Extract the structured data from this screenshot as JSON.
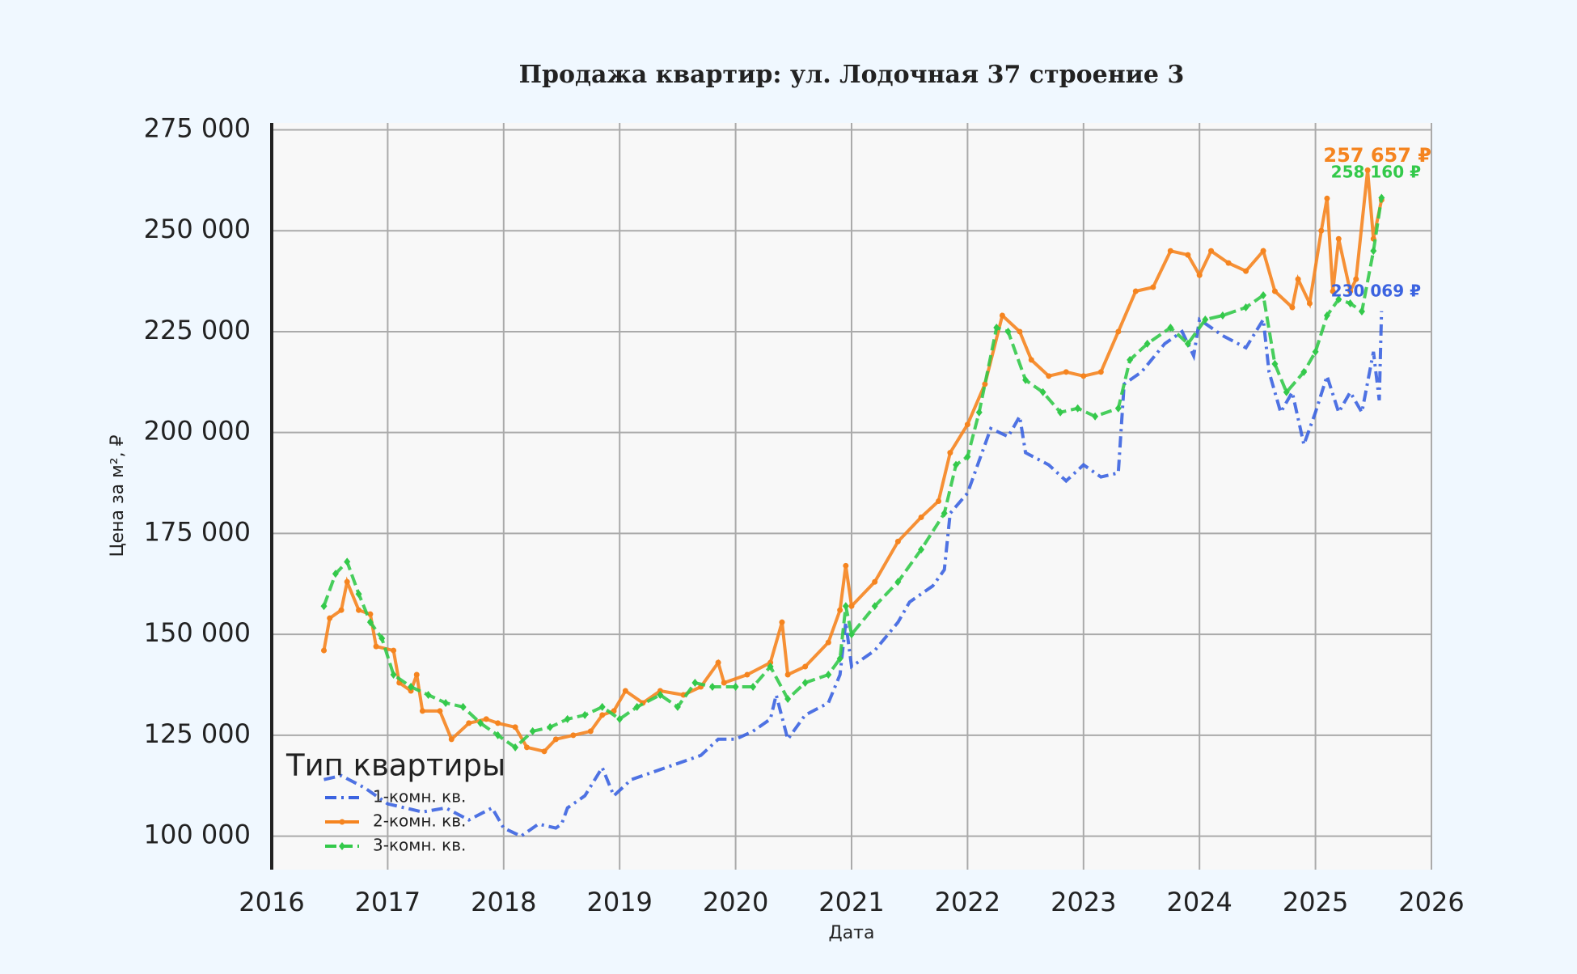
{
  "chart_data": {
    "type": "line",
    "title": "Продажа квартир: ул. Лодочная 37 строение 3",
    "xlabel": "Дата",
    "ylabel": "Цена за м², ₽",
    "legend_title": "Тип квартиры",
    "legend_loc": "lower left",
    "grid": true,
    "xlim": [
      2016,
      2026
    ],
    "xticks": [
      2016,
      2017,
      2018,
      2019,
      2020,
      2021,
      2022,
      2023,
      2024,
      2025,
      2026
    ],
    "ylim": [
      91700,
      276700
    ],
    "yticks": [
      {
        "value": 100000,
        "label": "100 000"
      },
      {
        "value": 125000,
        "label": "125 000"
      },
      {
        "value": 150000,
        "label": "150 000"
      },
      {
        "value": 175000,
        "label": "175 000"
      },
      {
        "value": 200000,
        "label": "200 000"
      },
      {
        "value": 225000,
        "label": "225 000"
      },
      {
        "value": 250000,
        "label": "250 000"
      },
      {
        "value": 275000,
        "label": "275 000"
      }
    ],
    "series": [
      {
        "name": "1-комн. кв.",
        "color": "#3b63e0",
        "linestyle": "dashdot",
        "marker": "none",
        "end_label": "230 069 ₽",
        "x": [
          2016.45,
          2016.6,
          2016.8,
          2017.0,
          2017.3,
          2017.5,
          2017.7,
          2017.9,
          2018.0,
          2018.15,
          2018.3,
          2018.45,
          2018.5,
          2018.55,
          2018.7,
          2018.85,
          2018.95,
          2019.1,
          2019.3,
          2019.5,
          2019.7,
          2019.85,
          2020.0,
          2020.15,
          2020.3,
          2020.35,
          2020.45,
          2020.6,
          2020.8,
          2020.9,
          2020.95,
          2021.0,
          2021.2,
          2021.4,
          2021.5,
          2021.7,
          2021.8,
          2021.85,
          2022.0,
          2022.1,
          2022.2,
          2022.35,
          2022.45,
          2022.5,
          2022.7,
          2022.85,
          2023.0,
          2023.15,
          2023.3,
          2023.35,
          2023.5,
          2023.7,
          2023.85,
          2023.95,
          2024.0,
          2024.2,
          2024.4,
          2024.55,
          2024.6,
          2024.7,
          2024.8,
          2024.9,
          2025.0,
          2025.1,
          2025.2,
          2025.3,
          2025.4,
          2025.5,
          2025.55,
          2025.57
        ],
        "values": [
          114000,
          115000,
          112000,
          108000,
          106000,
          107000,
          104000,
          107000,
          102000,
          100000,
          103000,
          102000,
          103000,
          107000,
          110000,
          117000,
          110000,
          114000,
          116000,
          118000,
          120000,
          124000,
          124000,
          126000,
          129000,
          135000,
          124000,
          130000,
          133000,
          140000,
          153000,
          142000,
          146000,
          153000,
          158000,
          162000,
          166000,
          180000,
          185000,
          193000,
          201000,
          199000,
          204000,
          195000,
          192000,
          188000,
          192000,
          189000,
          190000,
          212000,
          215000,
          222000,
          225000,
          219000,
          228000,
          224000,
          221000,
          228000,
          215000,
          205000,
          210000,
          197000,
          205000,
          214000,
          205000,
          210000,
          205000,
          220000,
          208000,
          230069
        ]
      },
      {
        "name": "2-комн. кв.",
        "color": "#f5841f",
        "linestyle": "solid",
        "marker": "circle",
        "end_label": "257 657 ₽",
        "x": [
          2016.45,
          2016.5,
          2016.6,
          2016.65,
          2016.75,
          2016.85,
          2016.9,
          2017.05,
          2017.1,
          2017.2,
          2017.25,
          2017.3,
          2017.45,
          2017.55,
          2017.7,
          2017.85,
          2017.95,
          2018.1,
          2018.2,
          2018.35,
          2018.45,
          2018.6,
          2018.75,
          2018.85,
          2018.95,
          2019.05,
          2019.2,
          2019.35,
          2019.55,
          2019.7,
          2019.85,
          2019.9,
          2020.1,
          2020.3,
          2020.4,
          2020.45,
          2020.6,
          2020.8,
          2020.9,
          2020.95,
          2021.0,
          2021.2,
          2021.4,
          2021.6,
          2021.75,
          2021.85,
          2022.0,
          2022.15,
          2022.3,
          2022.45,
          2022.55,
          2022.7,
          2022.85,
          2023.0,
          2023.15,
          2023.3,
          2023.45,
          2023.6,
          2023.75,
          2023.9,
          2024.0,
          2024.1,
          2024.25,
          2024.4,
          2024.55,
          2024.65,
          2024.8,
          2024.85,
          2024.95,
          2025.05,
          2025.1,
          2025.15,
          2025.2,
          2025.3,
          2025.35,
          2025.45,
          2025.5,
          2025.57
        ],
        "values": [
          146000,
          154000,
          156000,
          163000,
          156000,
          155000,
          147000,
          146000,
          138000,
          136000,
          140000,
          131000,
          131000,
          124000,
          128000,
          129000,
          128000,
          127000,
          122000,
          121000,
          124000,
          125000,
          126000,
          130000,
          131000,
          136000,
          133000,
          136000,
          135000,
          137000,
          143000,
          138000,
          140000,
          143000,
          153000,
          140000,
          142000,
          148000,
          156000,
          167000,
          157000,
          163000,
          173000,
          179000,
          183000,
          195000,
          202000,
          212000,
          229000,
          225000,
          218000,
          214000,
          215000,
          214000,
          215000,
          225000,
          235000,
          236000,
          245000,
          244000,
          239000,
          245000,
          242000,
          240000,
          245000,
          235000,
          231000,
          238000,
          232000,
          250000,
          258000,
          235000,
          248000,
          235000,
          238000,
          265000,
          248000,
          257657
        ]
      },
      {
        "name": "3-комн. кв.",
        "color": "#33c94a",
        "linestyle": "dashed",
        "marker": "diamond",
        "end_label": "258 160 ₽",
        "x": [
          2016.45,
          2016.55,
          2016.65,
          2016.75,
          2016.85,
          2016.95,
          2017.05,
          2017.2,
          2017.35,
          2017.5,
          2017.65,
          2017.8,
          2017.95,
          2018.1,
          2018.25,
          2018.4,
          2018.55,
          2018.7,
          2018.85,
          2019.0,
          2019.15,
          2019.35,
          2019.5,
          2019.65,
          2019.8,
          2020.0,
          2020.15,
          2020.3,
          2020.45,
          2020.6,
          2020.8,
          2020.9,
          2020.95,
          2021.0,
          2021.2,
          2021.4,
          2021.6,
          2021.8,
          2021.9,
          2022.0,
          2022.1,
          2022.25,
          2022.35,
          2022.5,
          2022.65,
          2022.8,
          2022.95,
          2023.1,
          2023.3,
          2023.4,
          2023.55,
          2023.75,
          2023.9,
          2024.05,
          2024.2,
          2024.4,
          2024.55,
          2024.65,
          2024.75,
          2024.9,
          2025.0,
          2025.1,
          2025.2,
          2025.3,
          2025.4,
          2025.5,
          2025.57
        ],
        "values": [
          157000,
          165000,
          168000,
          160000,
          153000,
          149000,
          140000,
          137000,
          135000,
          133000,
          132000,
          128000,
          125000,
          122000,
          126000,
          127000,
          129000,
          130000,
          132000,
          129000,
          132000,
          135000,
          132000,
          138000,
          137000,
          137000,
          137000,
          142000,
          134000,
          138000,
          140000,
          144000,
          157000,
          150000,
          157000,
          163000,
          171000,
          180000,
          192000,
          194000,
          205000,
          226000,
          225000,
          213000,
          210000,
          205000,
          206000,
          204000,
          206000,
          218000,
          222000,
          226000,
          222000,
          228000,
          229000,
          231000,
          234000,
          217000,
          210000,
          215000,
          220000,
          229000,
          233000,
          232000,
          230000,
          245000,
          258160
        ]
      }
    ]
  }
}
